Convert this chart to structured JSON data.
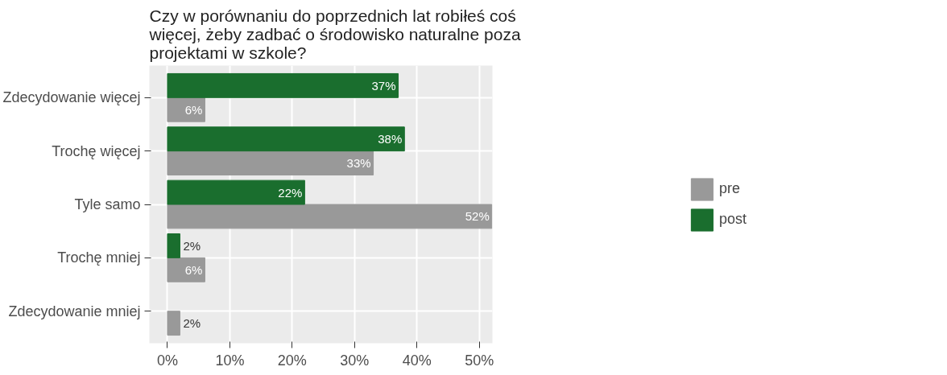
{
  "chart_data": {
    "type": "bar",
    "orientation": "horizontal",
    "title": "Czy w porównaniu do poprzednich lat robiłeś coś więcej, żeby zadbać o środowisko naturalne poza projektami w szkole?",
    "categories": [
      "Zdecydowanie więcej",
      "Trochę więcej",
      "Tyle samo",
      "Trochę mniej",
      "Zdecydowanie mniej"
    ],
    "series": [
      {
        "name": "pre",
        "color": "#999999",
        "values": [
          6,
          33,
          52,
          6,
          2
        ],
        "value_labels": [
          "6%",
          "33%",
          "52%",
          "6%",
          "2%"
        ]
      },
      {
        "name": "post",
        "color": "#1a6e2e",
        "values": [
          37,
          38,
          22,
          2,
          null
        ],
        "value_labels": [
          "37%",
          "38%",
          "22%",
          "2%",
          null
        ]
      }
    ],
    "xlim": [
      -2.9,
      52.1
    ],
    "xticks": [
      {
        "value": 0,
        "label": "0%"
      },
      {
        "value": 10,
        "label": "10%"
      },
      {
        "value": 20,
        "label": "20%"
      },
      {
        "value": 30,
        "label": "30%"
      },
      {
        "value": 40,
        "label": "40%"
      },
      {
        "value": 50,
        "label": "50%"
      }
    ],
    "grid": true,
    "legend": "right"
  }
}
